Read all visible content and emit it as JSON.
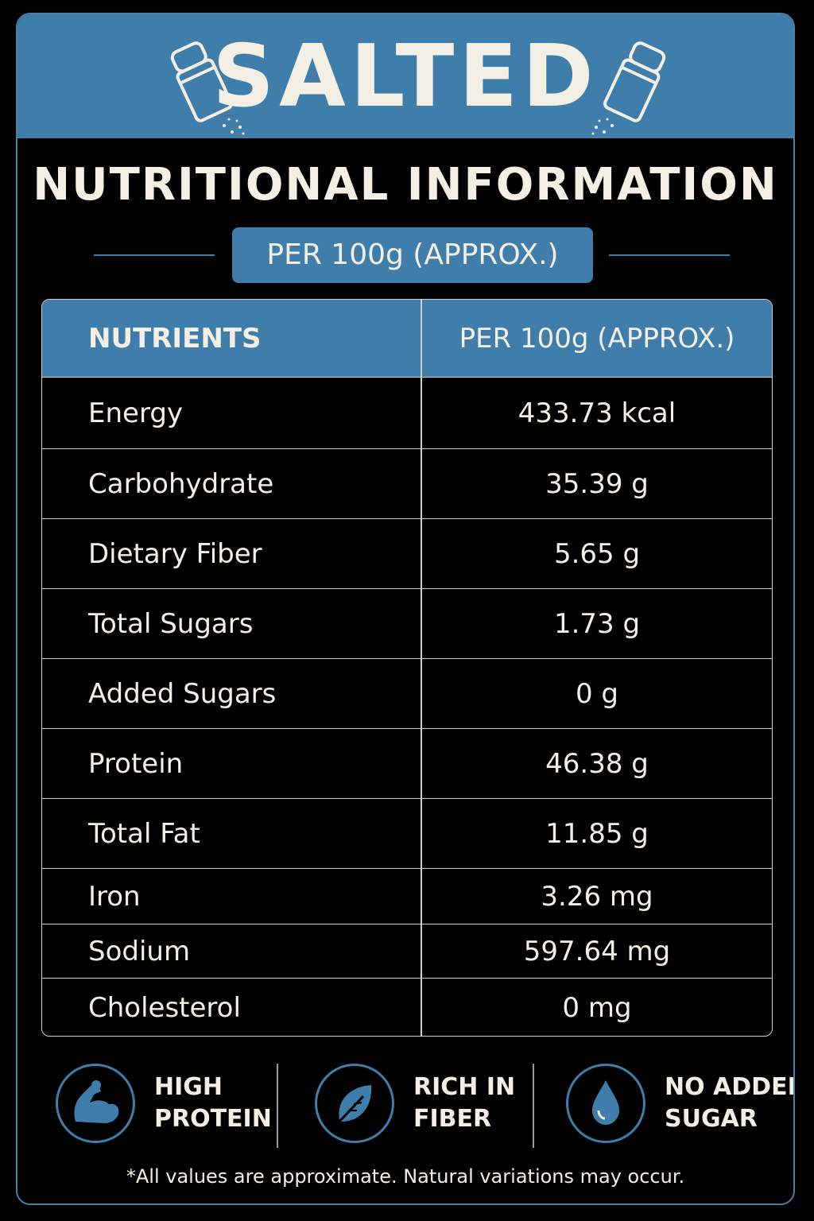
{
  "banner": {
    "title": "SALTED"
  },
  "heading": "NUTRITIONAL INFORMATION",
  "subheading": "PER 100g (APPROX.)",
  "table": {
    "headers": [
      "NUTRIENTS",
      "PER 100g (APPROX.)"
    ],
    "rows": [
      {
        "name": "Energy",
        "value": "433.73 kcal"
      },
      {
        "name": "Carbohydrate",
        "value": "35.39 g"
      },
      {
        "name": "Dietary Fiber",
        "value": "5.65 g"
      },
      {
        "name": "Total Sugars",
        "value": "1.73 g"
      },
      {
        "name": "Added Sugars",
        "value": "0 g"
      },
      {
        "name": "Protein",
        "value": "46.38 g"
      },
      {
        "name": "Total Fat",
        "value": "11.85 g"
      },
      {
        "name": "Iron",
        "value": "3.26 mg"
      },
      {
        "name": "Sodium",
        "value": "597.64 mg"
      },
      {
        "name": "Cholesterol",
        "value": "0 mg"
      }
    ]
  },
  "badges": [
    {
      "icon": "flexed-arm-icon",
      "line1": "HIGH",
      "line2": "PROTEIN"
    },
    {
      "icon": "leaf-icon",
      "line1": "RICH IN",
      "line2": "FIBER"
    },
    {
      "icon": "water-drop-icon",
      "line1": "NO ADDED",
      "line2": "SUGAR"
    }
  ],
  "footnote": "*All values are approximate. Natural variations may occur.",
  "colors": {
    "accent": "#3f7eab",
    "background": "#000000",
    "text": "#f3efe4"
  }
}
